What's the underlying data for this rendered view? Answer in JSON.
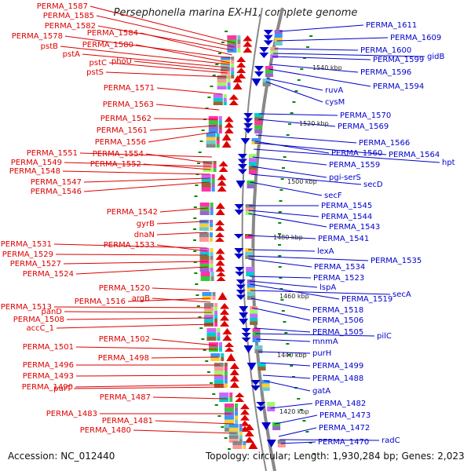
{
  "title": "Persephonella marina EX-H1, complete genome",
  "footer": {
    "accession": "Accession: NC_012440",
    "topology": "Topology: circular; Length: 1,930,284 bp; Genes: 2,023"
  },
  "colors": {
    "left_strand": "#dd0000",
    "right_strand": "#0000cc",
    "backbone": "#888888",
    "tick": "#008800"
  },
  "kbp_labels": [
    "1540 kbp",
    "1520 kbp",
    "1500 kbp",
    "1480 kbp",
    "1460 kbp",
    "1440 kbp",
    "1420 kbp"
  ],
  "left_labels": [
    "PERMA_1587",
    "PERMA_1585",
    "PERMA_1582",
    "PERMA_1584",
    "PERMA_1578",
    "PERMA_1580",
    "pstB",
    "pstA",
    "phoU",
    "pstC",
    "pstS",
    "PERMA_1571",
    "PERMA_1563",
    "PERMA_1562",
    "PERMA_1561",
    "PERMA_1556",
    "PERMA_1551",
    "PERMA_1554",
    "PERMA_1549",
    "PERMA_1552",
    "PERMA_1548",
    "PERMA_1547",
    "PERMA_1546",
    "PERMA_1542",
    "gyrB",
    "dnaN",
    "PERMA_1531",
    "PERMA_1533",
    "PERMA_1529",
    "PERMA_1527",
    "PERMA_1524",
    "PERMA_1520",
    "PERMA_1516",
    "argB",
    "PERMA_1513",
    "panD",
    "PERMA_1508",
    "accC_1",
    "PERMA_1502",
    "PERMA_1501",
    "PERMA_1498",
    "PERMA_1496",
    "PERMA_1493",
    "PERMA_1490",
    "purT",
    "PERMA_1487",
    "PERMA_1483",
    "PERMA_1481",
    "PERMA_1480"
  ],
  "right_labels": [
    "PERMA_1611",
    "PERMA_1609",
    "PERMA_1600",
    "gidB",
    "PERMA_1599",
    "PERMA_1596",
    "PERMA_1594",
    "ruvA",
    "cysM",
    "PERMA_1570",
    "PERMA_1569",
    "PERMA_1566",
    "PERMA_1560",
    "PERMA_1564",
    "hpt",
    "PERMA_1559",
    "pgi-serS",
    "secD",
    "secF",
    "PERMA_1545",
    "PERMA_1544",
    "PERMA_1543",
    "PERMA_1541",
    "lexA",
    "PERMA_1535",
    "PERMA_1534",
    "PERMA_1523",
    "lspA",
    "PERMA_1519",
    "secA",
    "PERMA_1518",
    "PERMA_1506",
    "PERMA_1505",
    "pilC",
    "mnmA",
    "purH",
    "PERMA_1499",
    "PERMA_1488",
    "gatA",
    "PERMA_1482",
    "PERMA_1473",
    "PERMA_1472",
    "radC",
    "PERMA_1470"
  ]
}
